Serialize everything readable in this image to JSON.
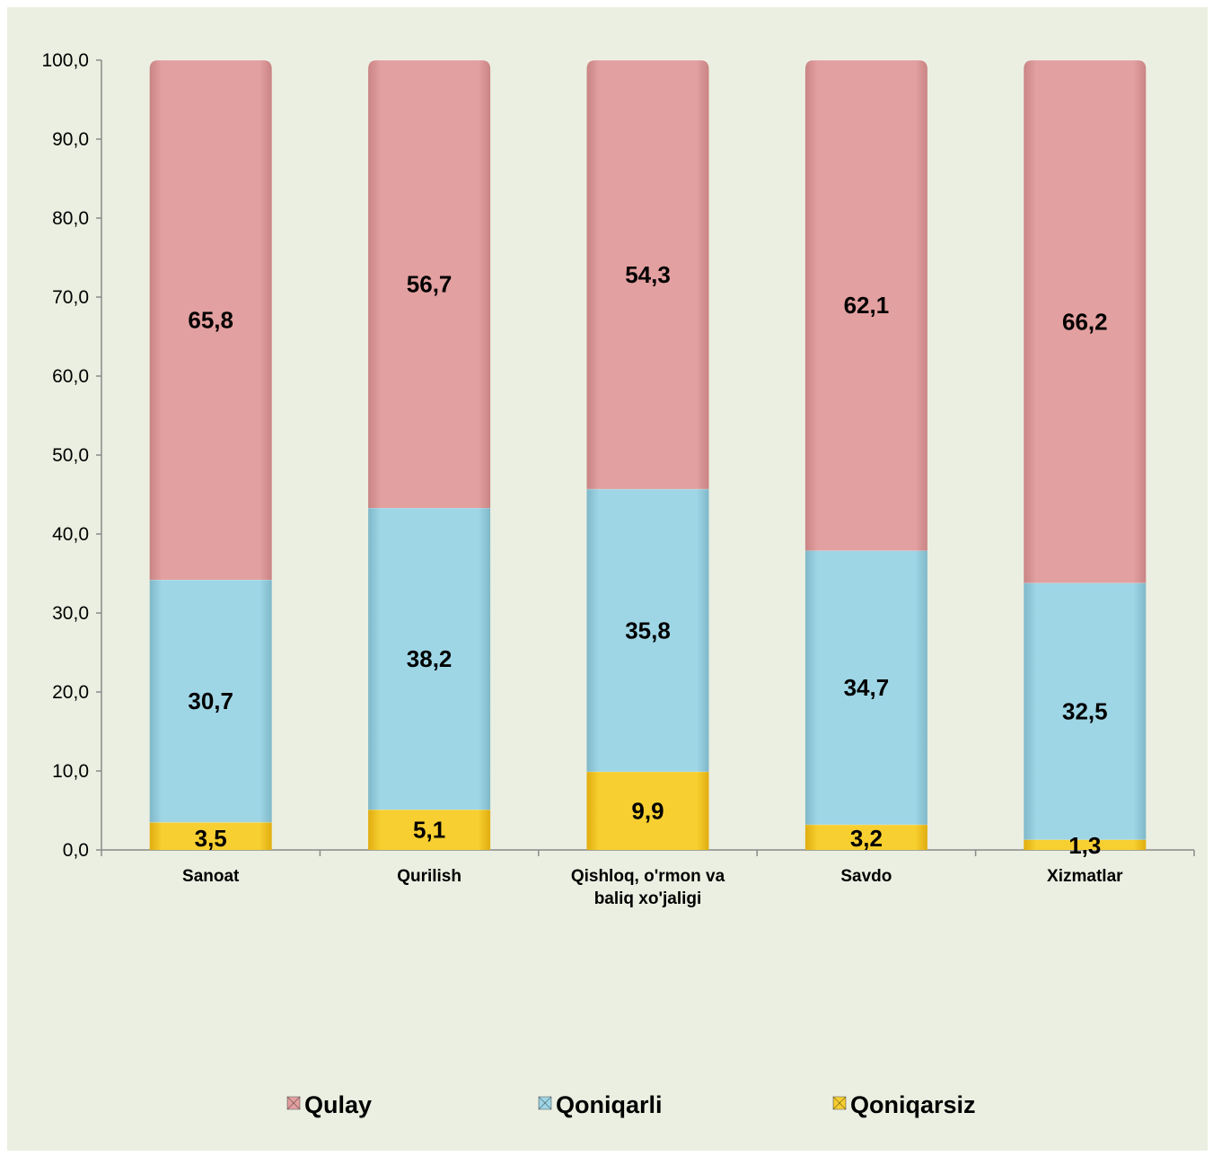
{
  "chart_data": {
    "type": "bar",
    "stacked": true,
    "categories": [
      [
        "Sanoat"
      ],
      [
        "Qurilish"
      ],
      [
        "Qishloq, o'rmon va",
        "baliq xo'jaligi"
      ],
      [
        "Savdo"
      ],
      [
        "Xizmatlar"
      ]
    ],
    "series": [
      {
        "name": "Qoniqarsiz",
        "color": "#f5c928",
        "values": [
          3.5,
          5.1,
          9.9,
          3.2,
          1.3
        ],
        "labels": [
          "3,5",
          "5,1",
          "9,9",
          "3,2",
          "1,3"
        ]
      },
      {
        "name": "Qoniqarli",
        "color": "#9fd6e6",
        "values": [
          30.7,
          38.2,
          35.8,
          34.7,
          32.5
        ],
        "labels": [
          "30,7",
          "38,2",
          "35,8",
          "34,7",
          "32,5"
        ]
      },
      {
        "name": "Qulay",
        "color": "#e3a0a0",
        "values": [
          65.8,
          56.7,
          54.3,
          62.1,
          66.2
        ],
        "labels": [
          "65,8",
          "56,7",
          "54,3",
          "62,1",
          "66,2"
        ]
      }
    ],
    "legend_order": [
      "Qulay",
      "Qoniqarli",
      "Qoniqarsiz"
    ],
    "legend_position": "bottom",
    "ylim": [
      0,
      100
    ],
    "yticks": [
      "0,0",
      "10,0",
      "20,0",
      "30,0",
      "40,0",
      "50,0",
      "60,0",
      "70,0",
      "80,0",
      "90,0",
      "100,0"
    ],
    "title": "",
    "xlabel": "",
    "ylabel": "",
    "grid": false,
    "background": "#ebefe1"
  }
}
